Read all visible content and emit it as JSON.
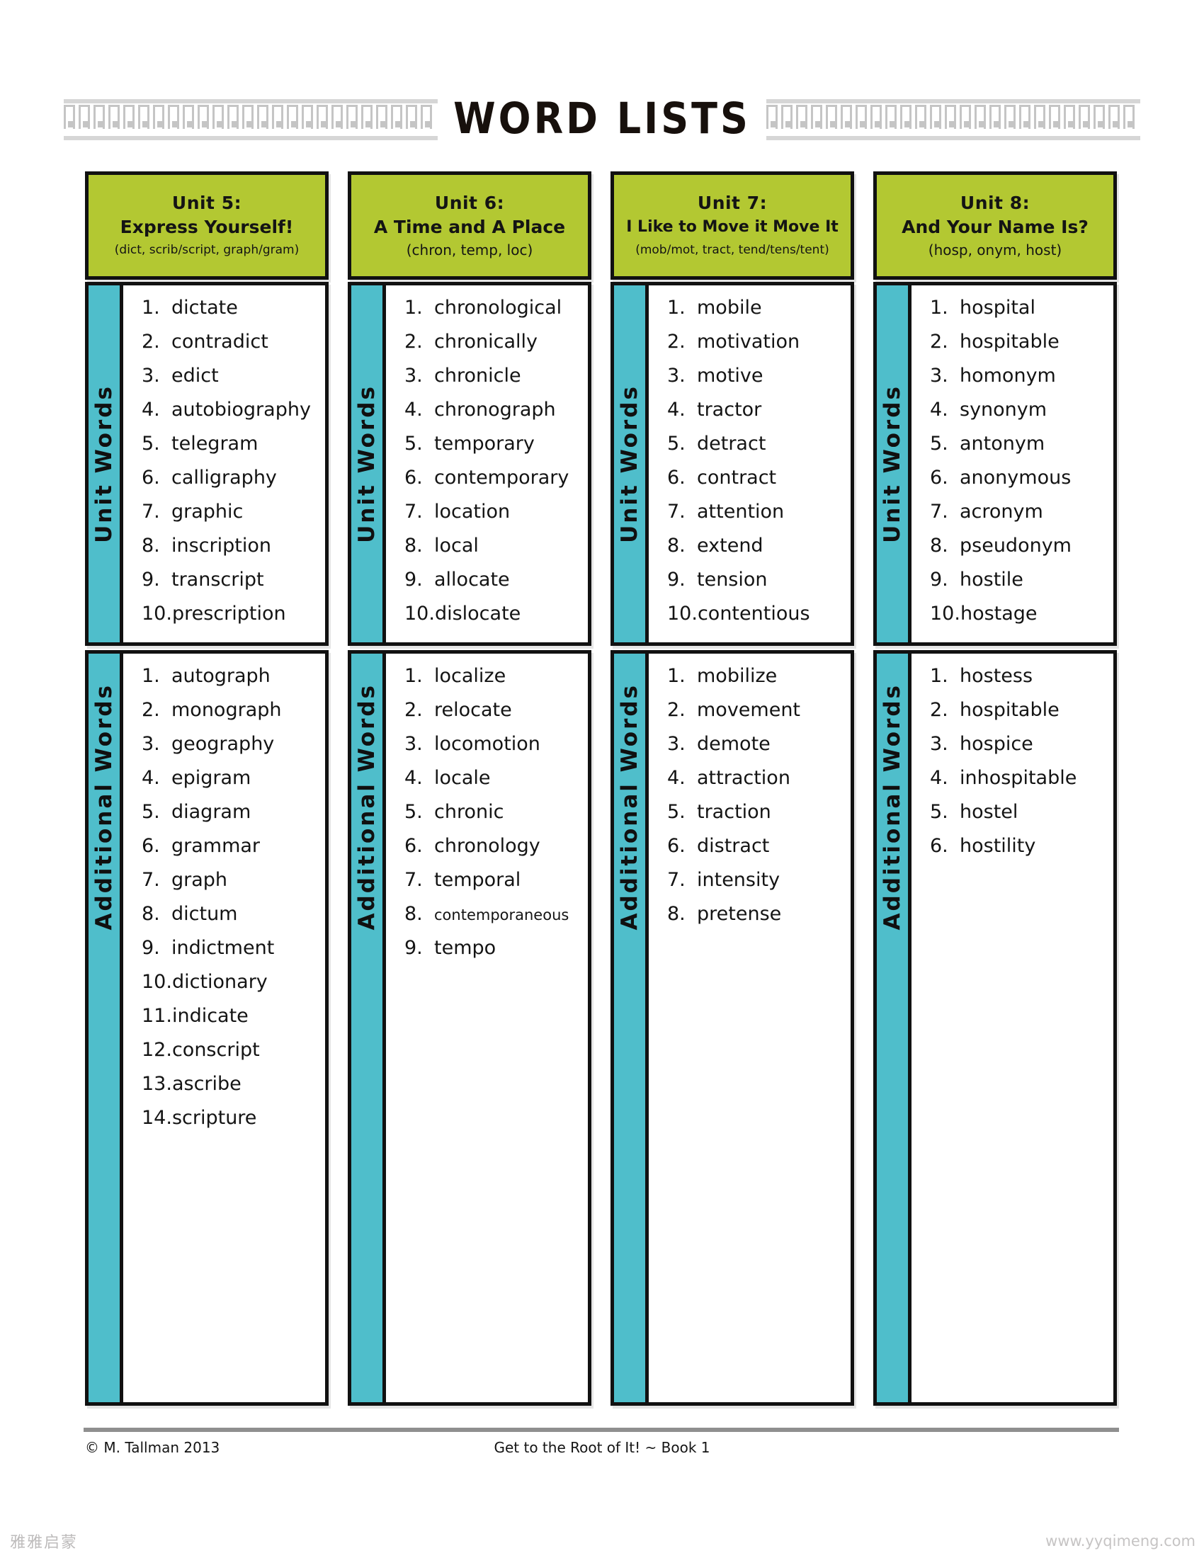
{
  "page": {
    "title": "WORD LISTS",
    "footer": {
      "copyright": "© M. Tallman 2013",
      "center": "Get to the Root of It!  ~ Book 1"
    },
    "watermarks": {
      "bottom_left": "雅雅启蒙",
      "bottom_right": "www.yyqimeng.com"
    }
  },
  "labels": {
    "unit_words": "Unit Words",
    "additional_words": "Additional Words"
  },
  "colors": {
    "header_green": "#b3c832",
    "sidebar_teal": "#4fbecb",
    "border_black": "#111111",
    "greek_key_gray": "#c5c5c5",
    "footer_rule_gray": "#8f8f8f"
  },
  "columns": [
    {
      "unit": "Unit 5:",
      "name": "Express Yourself!",
      "roots": "(dict, scrib/script, graph/gram)",
      "unit_words": [
        "dictate",
        "contradict",
        "edict",
        "autobiography",
        "telegram",
        "calligraphy",
        "graphic",
        "inscription",
        "transcript",
        "prescription"
      ],
      "additional_words": [
        "autograph",
        "monograph",
        "geography",
        "epigram",
        "diagram",
        "grammar",
        "graph",
        "dictum",
        "indictment",
        "dictionary",
        "indicate",
        "conscript",
        "ascribe",
        "scripture"
      ]
    },
    {
      "unit": "Unit 6:",
      "name": "A Time and A Place",
      "roots": "(chron, temp, loc)",
      "unit_words": [
        "chronological",
        "chronically",
        "chronicle",
        "chronograph",
        "temporary",
        "contemporary",
        "location",
        "local",
        "allocate",
        "dislocate"
      ],
      "additional_words": [
        "localize",
        "relocate",
        "locomotion",
        "locale",
        "chronic",
        "chronology",
        "temporal",
        "contemporaneous",
        "tempo"
      ]
    },
    {
      "unit": "Unit 7:",
      "name": "I Like to Move it Move It",
      "roots": "(mob/mot, tract, tend/tens/tent)",
      "unit_words": [
        "mobile",
        "motivation",
        "motive",
        "tractor",
        "detract",
        "contract",
        "attention",
        "extend",
        "tension",
        "contentious"
      ],
      "additional_words": [
        "mobilize",
        "movement",
        "demote",
        "attraction",
        "traction",
        "distract",
        "intensity",
        "pretense"
      ]
    },
    {
      "unit": "Unit 8:",
      "name": "And Your Name Is?",
      "roots": "(hosp, onym, host)",
      "unit_words": [
        "hospital",
        "hospitable",
        "homonym",
        "synonym",
        "antonym",
        "anonymous",
        "acronym",
        "pseudonym",
        "hostile",
        "hostage"
      ],
      "additional_words": [
        "hostess",
        "hospitable",
        "hospice",
        "inhospitable",
        "hostel",
        "hostility"
      ]
    }
  ]
}
